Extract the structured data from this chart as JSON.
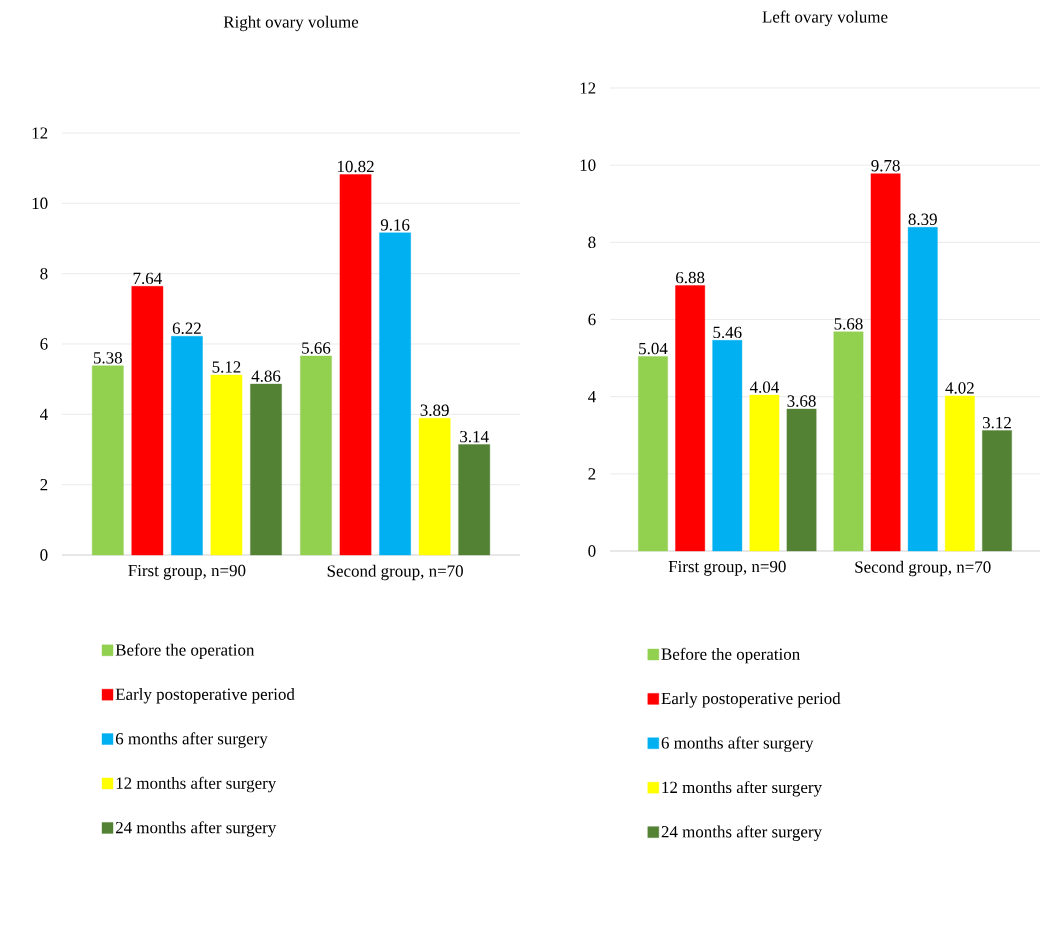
{
  "chart_data": [
    {
      "type": "bar",
      "title": "Right  ovary volume",
      "categories": [
        "First group, n=90",
        "Second group, n=70"
      ],
      "ylim": [
        0,
        12
      ],
      "yticks": [
        0,
        2,
        4,
        6,
        8,
        10,
        12
      ],
      "grid": "y",
      "legend": "bottom",
      "data_labels": true,
      "series": [
        {
          "name": "Before the operation",
          "color": "#92d050",
          "values": [
            5.38,
            5.66
          ]
        },
        {
          "name": "Early postoperative period",
          "color": "#ff0000",
          "values": [
            7.64,
            10.82
          ]
        },
        {
          "name": "6 months after surgery",
          "color": "#00b0f0",
          "values": [
            6.22,
            9.16
          ]
        },
        {
          "name": "12 months after surgery",
          "color": "#ffff00",
          "values": [
            5.12,
            3.89
          ]
        },
        {
          "name": "24 months after surgery",
          "color": "#548235",
          "values": [
            4.86,
            3.14
          ]
        }
      ]
    },
    {
      "type": "bar",
      "title": "Left ovary volume",
      "categories": [
        "First group, n=90",
        "Second group, n=70"
      ],
      "ylim": [
        0,
        12
      ],
      "yticks": [
        0,
        2,
        4,
        6,
        8,
        10,
        12
      ],
      "grid": "y",
      "legend": "bottom",
      "data_labels": true,
      "series": [
        {
          "name": "Before the operation",
          "color": "#92d050",
          "values": [
            5.04,
            5.68
          ]
        },
        {
          "name": "Early postoperative period",
          "color": "#ff0000",
          "values": [
            6.88,
            9.78
          ]
        },
        {
          "name": "6 months after surgery",
          "color": "#00b0f0",
          "values": [
            5.46,
            8.39
          ]
        },
        {
          "name": "12 months after surgery",
          "color": "#ffff00",
          "values": [
            4.04,
            4.02
          ]
        },
        {
          "name": "24 months after surgery",
          "color": "#548235",
          "values": [
            3.68,
            3.12
          ]
        }
      ]
    }
  ]
}
